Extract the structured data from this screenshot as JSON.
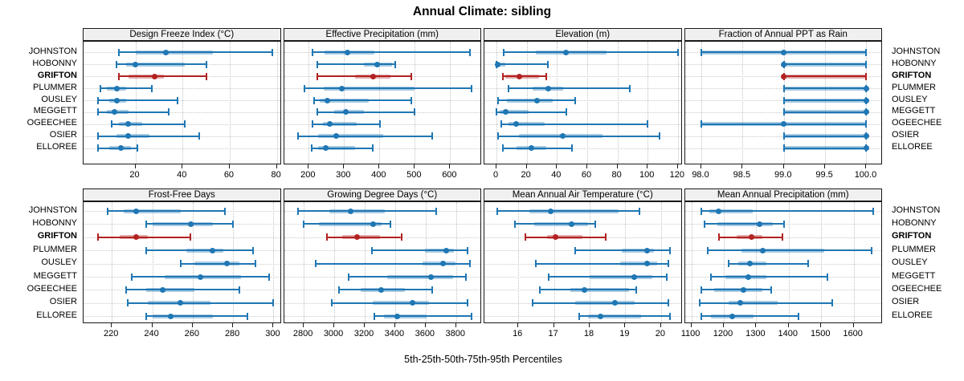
{
  "chart_data": {
    "type": "scatter",
    "subtype": "multi-panel percentile interval dot plot (lattice trellis)",
    "title": "Annual Climate: sibling",
    "xlabel": "5th-25th-50th-75th-95th Percentiles",
    "legend": "none",
    "grid": "dotted",
    "sites": [
      "JOHNSTON",
      "HOBONNY",
      "GRIFTON",
      "PLUMMER",
      "OUSLEY",
      "MEGGETT",
      "OGEECHEE",
      "OSIER",
      "ELLOREE"
    ],
    "highlight_site": "GRIFTON",
    "colors": {
      "series_blue": "#1F77B4",
      "series_blue_band": "rgba(31,119,180,0.38)",
      "highlight_red": "#B22222",
      "highlight_red_band": "rgba(178,34,34,0.38)",
      "gridline": "#C9C9C9",
      "panel_border": "#1a1a1a",
      "strip_bg": "#f0f0f0"
    },
    "percentiles": [
      5,
      25,
      50,
      75,
      95
    ],
    "panels": [
      {
        "label": "Design Freeze Index (°C)",
        "xlim": [
          -2,
          82
        ],
        "ticks": [
          20,
          40,
          60,
          80
        ],
        "tick_labels": [
          "20",
          "40",
          "60",
          "80"
        ],
        "values": [
          [
            13,
            20,
            33,
            53,
            78
          ],
          [
            12,
            16,
            20,
            41,
            50
          ],
          [
            13,
            17,
            28,
            32,
            50
          ],
          [
            5,
            8,
            12,
            16,
            27
          ],
          [
            4,
            9,
            12,
            16,
            38
          ],
          [
            4,
            8,
            11,
            17,
            34
          ],
          [
            10,
            13,
            17,
            23,
            41
          ],
          [
            4,
            12,
            17,
            26,
            47
          ],
          [
            4,
            9,
            14,
            18,
            21
          ]
        ]
      },
      {
        "label": "Effective Precipitation (mm)",
        "xlim": [
          130,
          690
        ],
        "ticks": [
          200,
          300,
          400,
          500,
          600
        ],
        "tick_labels": [
          "200",
          "300",
          "400",
          "500",
          "600"
        ],
        "values": [
          [
            210,
            245,
            310,
            385,
            655
          ],
          [
            225,
            355,
            393,
            435,
            445
          ],
          [
            225,
            330,
            382,
            430,
            490
          ],
          [
            188,
            243,
            293,
            500,
            660
          ],
          [
            215,
            232,
            252,
            370,
            490
          ],
          [
            225,
            272,
            305,
            355,
            500
          ],
          [
            210,
            240,
            260,
            335,
            402
          ],
          [
            170,
            227,
            277,
            410,
            550
          ],
          [
            208,
            227,
            247,
            330,
            380
          ]
        ]
      },
      {
        "label": "Elevation (m)",
        "xlim": [
          -8,
          123
        ],
        "ticks": [
          0,
          20,
          40,
          60,
          80,
          100,
          120
        ],
        "tick_labels": [
          "0",
          "20",
          "40",
          "60",
          "80",
          "100",
          "120"
        ],
        "values": [
          [
            5,
            26,
            46,
            73,
            120
          ],
          [
            0,
            0.5,
            1,
            6,
            34
          ],
          [
            4,
            6,
            15,
            28,
            33
          ],
          [
            8,
            24,
            34,
            44,
            88
          ],
          [
            1,
            7,
            27,
            37,
            52
          ],
          [
            0,
            2,
            6,
            21,
            46
          ],
          [
            3,
            8,
            13,
            32,
            100
          ],
          [
            1,
            15,
            44,
            70,
            108
          ],
          [
            4,
            13,
            23,
            33,
            50
          ]
        ]
      },
      {
        "label": "Fraction of Annual PPT as Rain",
        "xlim": [
          97.8,
          100.2
        ],
        "ticks": [
          98.0,
          98.5,
          99.0,
          99.5,
          100.0
        ],
        "tick_labels": [
          "98.0",
          "98.5",
          "99.0",
          "99.5",
          "100.0"
        ],
        "values": [
          [
            98,
            98,
            99,
            100,
            100
          ],
          [
            99,
            99,
            99,
            100,
            100
          ],
          [
            99,
            99,
            99,
            100,
            100
          ],
          [
            99,
            99,
            100,
            100,
            100
          ],
          [
            99,
            99,
            100,
            100,
            100
          ],
          [
            99,
            99,
            100,
            100,
            100
          ],
          [
            98,
            98,
            99,
            100,
            100
          ],
          [
            99,
            99,
            100,
            100,
            100
          ],
          [
            99,
            99,
            100,
            100,
            100
          ]
        ]
      },
      {
        "label": "Frost-Free Days",
        "xlim": [
          206,
          304
        ],
        "ticks": [
          220,
          240,
          260,
          280,
          300
        ],
        "tick_labels": [
          "220",
          "240",
          "260",
          "280",
          "300"
        ],
        "values": [
          [
            218,
            226,
            232,
            254,
            276
          ],
          [
            237,
            240,
            259,
            270,
            280
          ],
          [
            213,
            224,
            232,
            238,
            259
          ],
          [
            237,
            257,
            270,
            275,
            290
          ],
          [
            254,
            261,
            277,
            283,
            291
          ],
          [
            230,
            246,
            264,
            284,
            298
          ],
          [
            227,
            237,
            245,
            261,
            283
          ],
          [
            228,
            238,
            254,
            269,
            300
          ],
          [
            237,
            240,
            249,
            270,
            287
          ]
        ]
      },
      {
        "label": "Growing Degree Days (°C)",
        "xlim": [
          2670,
          3970
        ],
        "ticks": [
          2800,
          3000,
          3200,
          3400,
          3600,
          3800
        ],
        "tick_labels": [
          "2800",
          "3000",
          "3200",
          "3400",
          "3600",
          "3800"
        ],
        "values": [
          [
            2760,
            2970,
            3110,
            3330,
            3670
          ],
          [
            2800,
            2900,
            3255,
            3310,
            3370
          ],
          [
            2950,
            3050,
            3150,
            3300,
            3440
          ],
          [
            3250,
            3595,
            3735,
            3785,
            3875
          ],
          [
            2880,
            3580,
            3715,
            3795,
            3890
          ],
          [
            3095,
            3350,
            3635,
            3780,
            3865
          ],
          [
            3030,
            3175,
            3310,
            3465,
            3645
          ],
          [
            2985,
            3255,
            3515,
            3620,
            3875
          ],
          [
            3265,
            3325,
            3415,
            3605,
            3900
          ]
        ]
      },
      {
        "label": "Mean Annual Air Temperature (°C)",
        "xlim": [
          15.05,
          20.6
        ],
        "ticks": [
          16,
          17,
          18,
          19,
          20
        ],
        "tick_labels": [
          "16",
          "17",
          "18",
          "19",
          "20"
        ],
        "values": [
          [
            15.4,
            16.3,
            16.9,
            18.8,
            19.4
          ],
          [
            15.9,
            16.45,
            17.5,
            17.95,
            18.15
          ],
          [
            16.2,
            16.8,
            17.05,
            17.8,
            18.45
          ],
          [
            17.6,
            18.9,
            19.6,
            19.8,
            20.25
          ],
          [
            16.5,
            18.85,
            19.6,
            19.9,
            20.2
          ],
          [
            16.85,
            18.0,
            19.25,
            19.75,
            20.15
          ],
          [
            16.6,
            17.45,
            17.85,
            19.1,
            19.3
          ],
          [
            16.4,
            17.6,
            18.7,
            19.25,
            20.2
          ],
          [
            17.7,
            17.95,
            18.3,
            19.45,
            20.25
          ]
        ]
      },
      {
        "label": "Mean Annual Precipitation (mm)",
        "xlim": [
          1080,
          1690
        ],
        "ticks": [
          1100,
          1200,
          1300,
          1400,
          1500,
          1600
        ],
        "tick_labels": [
          "1100",
          "1200",
          "1300",
          "1400",
          "1500",
          "1600"
        ],
        "values": [
          [
            1130,
            1155,
            1185,
            1290,
            1660
          ],
          [
            1140,
            1180,
            1310,
            1350,
            1385
          ],
          [
            1185,
            1240,
            1285,
            1320,
            1380
          ],
          [
            1150,
            1255,
            1320,
            1510,
            1655
          ],
          [
            1215,
            1245,
            1280,
            1330,
            1460
          ],
          [
            1160,
            1205,
            1275,
            1330,
            1520
          ],
          [
            1130,
            1170,
            1260,
            1320,
            1345
          ],
          [
            1125,
            1215,
            1250,
            1365,
            1535
          ],
          [
            1130,
            1160,
            1227,
            1292,
            1430
          ]
        ]
      }
    ]
  }
}
